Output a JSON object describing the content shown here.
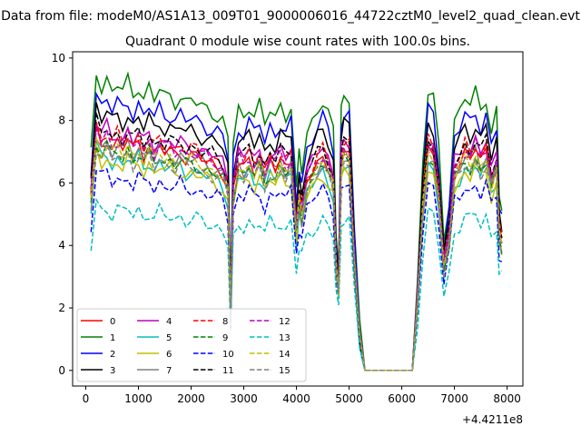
{
  "figure": {
    "suptitle": "Data from file: modeM0/AS1A13_009T01_9000006016_44722cztM0_level2_quad_clean.evt",
    "offset_label": "+4.4211e8"
  },
  "chart_data": {
    "type": "line",
    "title": "Quadrant 0 module wise count rates with 100.0s bins.",
    "xlabel": "",
    "ylabel": "",
    "xlim": [
      -250,
      8300
    ],
    "ylim": [
      -0.5,
      10.2
    ],
    "xticks": [
      0,
      1000,
      2000,
      3000,
      4000,
      5000,
      6000,
      7000,
      8000
    ],
    "yticks": [
      0,
      2,
      4,
      6,
      8,
      10
    ],
    "grid": false,
    "legend": "lower-left",
    "x": [
      100,
      200,
      300,
      400,
      500,
      600,
      700,
      800,
      900,
      1000,
      1100,
      1200,
      1300,
      1400,
      1500,
      1600,
      1700,
      1800,
      1900,
      2000,
      2100,
      2200,
      2300,
      2400,
      2500,
      2600,
      2700,
      2750,
      2800,
      2900,
      3000,
      3100,
      3200,
      3300,
      3400,
      3500,
      3600,
      3700,
      3800,
      3900,
      4000,
      4050,
      4100,
      4200,
      4300,
      4400,
      4500,
      4600,
      4700,
      4750,
      4800,
      4850,
      4900,
      5000,
      5100,
      5200,
      5300,
      5400,
      5500,
      5600,
      5700,
      5800,
      5900,
      6000,
      6100,
      6200,
      6300,
      6400,
      6500,
      6600,
      6700,
      6800,
      6900,
      7000,
      7100,
      7200,
      7300,
      7400,
      7500,
      7600,
      7700,
      7800,
      7850,
      7900
    ],
    "series": [
      {
        "name": "0",
        "color": "#ff0000",
        "dash": "solid",
        "base": 7.1
      },
      {
        "name": "1",
        "color": "#008000",
        "dash": "solid",
        "base": 8.9
      },
      {
        "name": "2",
        "color": "#0000ff",
        "dash": "solid",
        "base": 8.3
      },
      {
        "name": "3",
        "color": "#000000",
        "dash": "solid",
        "base": 7.9
      },
      {
        "name": "4",
        "color": "#bf00bf",
        "dash": "solid",
        "base": 7.4
      },
      {
        "name": "5",
        "color": "#00bfbf",
        "dash": "solid",
        "base": 6.6
      },
      {
        "name": "6",
        "color": "#bfbf00",
        "dash": "solid",
        "base": 6.5
      },
      {
        "name": "7",
        "color": "#808080",
        "dash": "solid",
        "base": 7.0
      },
      {
        "name": "8",
        "color": "#ff0000",
        "dash": "dashed",
        "base": 7.3
      },
      {
        "name": "9",
        "color": "#008000",
        "dash": "dashed",
        "base": 6.8
      },
      {
        "name": "10",
        "color": "#0000ff",
        "dash": "dashed",
        "base": 6.0
      },
      {
        "name": "11",
        "color": "#000000",
        "dash": "dashed",
        "base": 7.4
      },
      {
        "name": "12",
        "color": "#bf00bf",
        "dash": "dashed",
        "base": 7.2
      },
      {
        "name": "13",
        "color": "#00bfbf",
        "dash": "dashed",
        "base": 5.0
      },
      {
        "name": "14",
        "color": "#bfbf00",
        "dash": "dashed",
        "base": 6.9
      },
      {
        "name": "15",
        "color": "#808080",
        "dash": "dashed",
        "base": 6.7
      }
    ],
    "shape": [
      0.78,
      1.08,
      1.02,
      1.05,
      1.0,
      1.03,
      1.0,
      1.04,
      0.99,
      1.03,
      0.98,
      1.02,
      0.97,
      1.01,
      0.98,
      0.99,
      0.97,
      0.99,
      0.96,
      0.97,
      0.96,
      0.95,
      0.94,
      0.93,
      0.92,
      0.9,
      0.82,
      0.25,
      0.82,
      0.94,
      0.92,
      0.96,
      0.91,
      0.95,
      0.88,
      0.94,
      0.91,
      0.96,
      0.92,
      0.95,
      0.63,
      0.78,
      0.72,
      0.86,
      0.9,
      0.94,
      0.97,
      0.92,
      0.85,
      0.5,
      0.38,
      0.95,
      0.99,
      0.98,
      0.5,
      0.15,
      0.0,
      0.0,
      0.0,
      0.0,
      0.0,
      0.0,
      0.0,
      0.0,
      0.0,
      0.0,
      0.32,
      0.75,
      1.0,
      0.98,
      0.8,
      0.48,
      0.62,
      0.9,
      0.93,
      0.98,
      0.95,
      1.0,
      0.94,
      0.99,
      0.86,
      0.93,
      0.62,
      0.58
    ]
  }
}
